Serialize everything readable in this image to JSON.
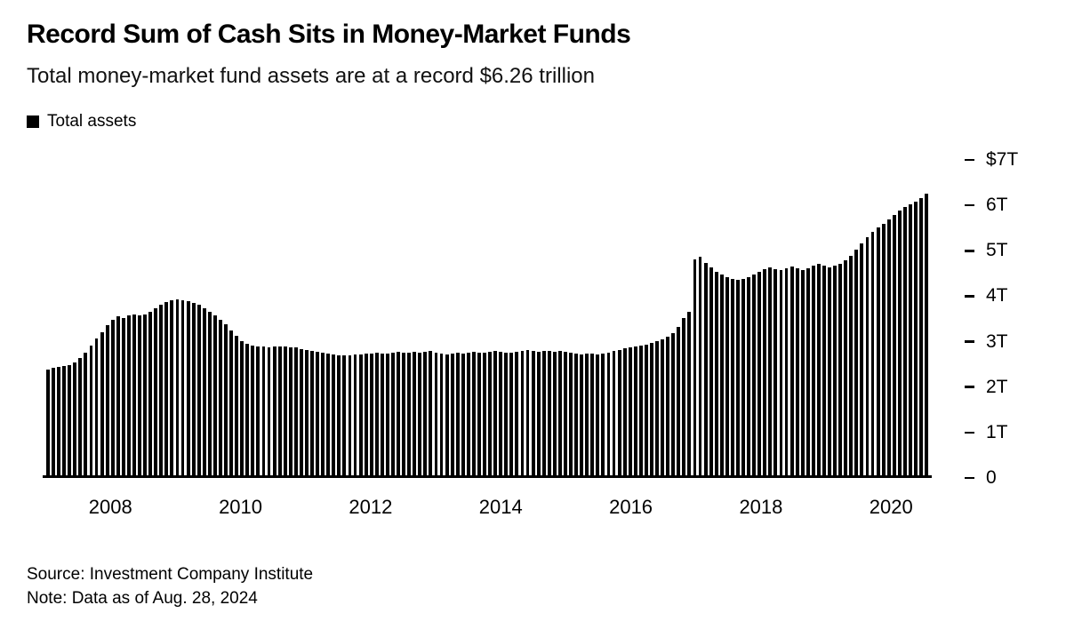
{
  "header": {
    "title": "Record Sum of Cash Sits in Money-Market Funds",
    "subtitle": "Total money-market fund assets are at a record $6.26 trillion"
  },
  "legend": {
    "label": "Total assets",
    "swatch_color": "#000000"
  },
  "chart_data": {
    "type": "bar",
    "title": "Record Sum of Cash Sits in Money-Market Funds",
    "subtitle": "Total money-market fund assets are at a record $6.26 trillion",
    "series_name": "Total assets",
    "unit": "USD trillions",
    "bar_color": "#000000",
    "grid": false,
    "legend_position": "top-left",
    "y_axis_side": "right",
    "ylim": [
      0,
      7
    ],
    "y_tick_values": [
      7,
      6,
      5,
      4,
      3,
      2,
      1,
      0
    ],
    "y_tick_labels": [
      "$7T",
      "6T",
      "5T",
      "4T",
      "3T",
      "2T",
      "1T",
      "0"
    ],
    "x_tick_labels": [
      "2008",
      "2010",
      "2012",
      "2014",
      "2016",
      "2018",
      "2020"
    ],
    "x_tick_indices": [
      12,
      36,
      60,
      84,
      108,
      132,
      156
    ],
    "latest_value": 6.26,
    "values": [
      2.35,
      2.38,
      2.4,
      2.42,
      2.44,
      2.5,
      2.6,
      2.73,
      2.88,
      3.03,
      3.18,
      3.33,
      3.45,
      3.53,
      3.5,
      3.54,
      3.57,
      3.54,
      3.57,
      3.62,
      3.7,
      3.78,
      3.85,
      3.89,
      3.9,
      3.88,
      3.86,
      3.83,
      3.78,
      3.7,
      3.62,
      3.54,
      3.45,
      3.35,
      3.22,
      3.1,
      2.98,
      2.92,
      2.88,
      2.86,
      2.85,
      2.84,
      2.85,
      2.86,
      2.85,
      2.84,
      2.83,
      2.81,
      2.79,
      2.77,
      2.75,
      2.73,
      2.71,
      2.69,
      2.67,
      2.66,
      2.67,
      2.68,
      2.69,
      2.7,
      2.7,
      2.72,
      2.71,
      2.7,
      2.72,
      2.74,
      2.73,
      2.72,
      2.74,
      2.73,
      2.75,
      2.76,
      2.72,
      2.7,
      2.68,
      2.7,
      2.72,
      2.71,
      2.72,
      2.74,
      2.73,
      2.72,
      2.74,
      2.76,
      2.75,
      2.73,
      2.72,
      2.74,
      2.76,
      2.78,
      2.76,
      2.75,
      2.77,
      2.76,
      2.74,
      2.76,
      2.74,
      2.72,
      2.7,
      2.69,
      2.71,
      2.7,
      2.69,
      2.71,
      2.73,
      2.76,
      2.79,
      2.82,
      2.84,
      2.86,
      2.88,
      2.9,
      2.93,
      2.97,
      3.02,
      3.08,
      3.16,
      3.3,
      3.5,
      3.62,
      4.8,
      4.86,
      4.72,
      4.62,
      4.52,
      4.45,
      4.4,
      4.36,
      4.34,
      4.36,
      4.4,
      4.45,
      4.52,
      4.58,
      4.62,
      4.58,
      4.55,
      4.6,
      4.64,
      4.6,
      4.56,
      4.6,
      4.65,
      4.7,
      4.66,
      4.62,
      4.65,
      4.7,
      4.78,
      4.88,
      5.0,
      5.15,
      5.28,
      5.4,
      5.5,
      5.58,
      5.68,
      5.78,
      5.88,
      5.96,
      6.02,
      6.08,
      6.15,
      6.26
    ]
  },
  "footer": {
    "source": "Source: Investment Company Institute",
    "note": "Note: Data as of Aug. 28, 2024"
  }
}
